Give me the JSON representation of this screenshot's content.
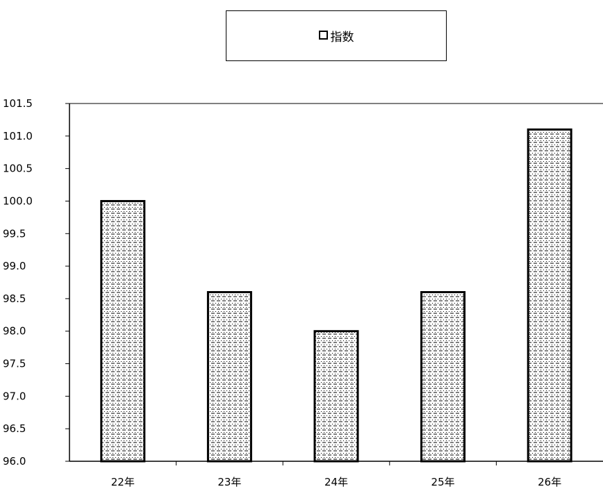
{
  "chart_data": {
    "type": "bar",
    "title": "",
    "xlabel": "",
    "ylabel": "",
    "categories": [
      "22年",
      "23年",
      "24年",
      "25年",
      "26年"
    ],
    "series": [
      {
        "name": "指数",
        "values": [
          100.0,
          98.6,
          98.0,
          98.6,
          101.1
        ]
      }
    ],
    "ylim": [
      96.0,
      101.5
    ],
    "ytick_step": 0.5,
    "yticks": [
      "96.0",
      "96.5",
      "97.0",
      "97.5",
      "98.0",
      "98.5",
      "99.0",
      "99.5",
      "100.0",
      "100.5",
      "101.0",
      "101.5"
    ],
    "grid": false,
    "legend_position": "top-center",
    "bar_fill": "dotted-dashed pattern",
    "colors": {
      "bar_stroke": "#000000",
      "pattern": "#000000",
      "background": "#ffffff"
    }
  }
}
